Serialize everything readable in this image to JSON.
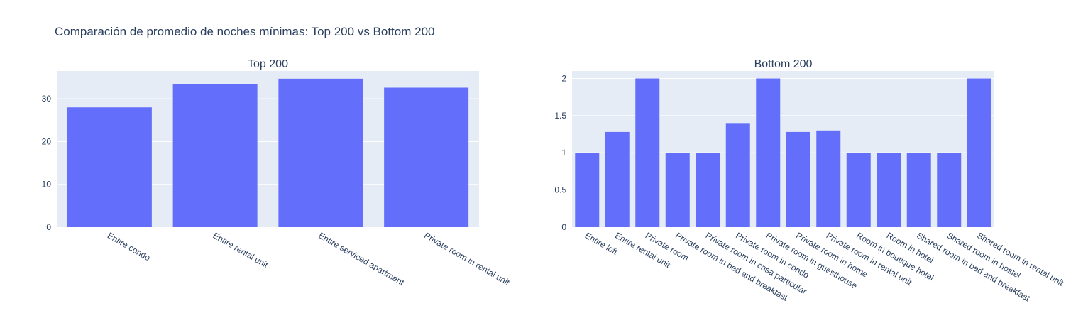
{
  "title": "Comparación de promedio de noches mínimas: Top 200 vs Bottom 200",
  "colors": {
    "bar": "#636efa",
    "plot_background": "#e5ecf6",
    "grid": "#ffffff",
    "text": "#2a3f5f",
    "tick_text": "#2a3f5f"
  },
  "chart_data": [
    {
      "type": "bar",
      "subtitle": "Top 200",
      "categories": [
        "Entire condo",
        "Entire rental unit",
        "Entire serviced apartment",
        "Private room in rental unit"
      ],
      "values": [
        28.0,
        33.5,
        34.7,
        32.6
      ],
      "ylim": [
        0,
        36.5
      ],
      "yticks": [
        0,
        10,
        20,
        30
      ],
      "ytick_labels": [
        "0",
        "10",
        "20",
        "30"
      ],
      "grid": true
    },
    {
      "type": "bar",
      "subtitle": "Bottom 200",
      "categories": [
        "Entire loft",
        "Entire rental unit",
        "Private room",
        "Private room in bed and breakfast",
        "Private room in casa particular",
        "Private room in condo",
        "Private room in guesthouse",
        "Private room in home",
        "Private room in rental unit",
        "Room in boutique hotel",
        "Room in hotel",
        "Shared room in bed and breakfast",
        "Shared room in hostel",
        "Shared room in rental unit"
      ],
      "values": [
        1.0,
        1.28,
        2.0,
        1.0,
        1.0,
        1.4,
        2.0,
        1.28,
        1.3,
        1.0,
        1.0,
        1.0,
        1.0,
        2.0
      ],
      "ylim": [
        0,
        2.1
      ],
      "yticks": [
        0,
        0.5,
        1,
        1.5,
        2
      ],
      "ytick_labels": [
        "0",
        "0.5",
        "1",
        "1.5",
        "2"
      ],
      "grid": true
    }
  ]
}
